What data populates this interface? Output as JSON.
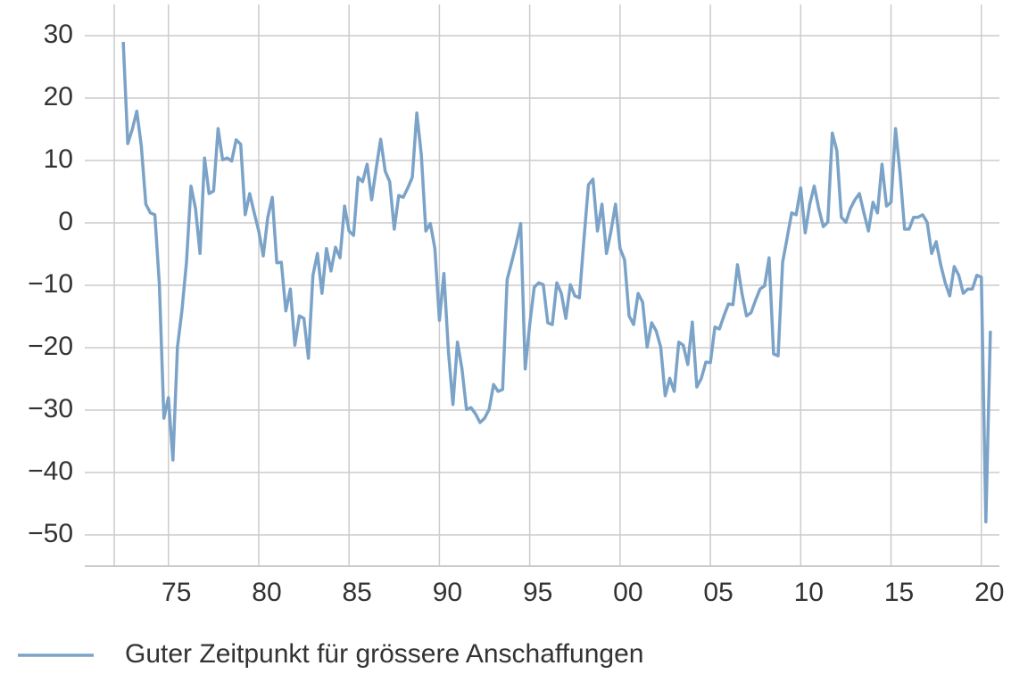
{
  "chart_data": {
    "type": "line",
    "legend": "bottom-left",
    "grid": true,
    "xlim": [
      1972,
      2021
    ],
    "xticks": [
      {
        "value": 1975,
        "label": "75"
      },
      {
        "value": 1980,
        "label": "80"
      },
      {
        "value": 1985,
        "label": "85"
      },
      {
        "value": 1990,
        "label": "90"
      },
      {
        "value": 1995,
        "label": "95"
      },
      {
        "value": 2000,
        "label": "00"
      },
      {
        "value": 2005,
        "label": "05"
      },
      {
        "value": 2010,
        "label": "10"
      },
      {
        "value": 2015,
        "label": "15"
      },
      {
        "value": 2020,
        "label": "20"
      }
    ],
    "ylim": [
      -55,
      35
    ],
    "yticks": [
      30,
      20,
      10,
      0,
      {
        "value": -10,
        "label": "−10"
      },
      {
        "value": -20,
        "label": "−20"
      },
      {
        "value": -30,
        "label": "−30"
      },
      {
        "value": -40,
        "label": "−40"
      },
      {
        "value": -50,
        "label": "−50"
      }
    ],
    "x": [
      1972.5,
      1972.75,
      1973,
      1973.25,
      1973.5,
      1973.75,
      1974,
      1974.25,
      1974.5,
      1974.75,
      1975,
      1975.25,
      1975.5,
      1975.75,
      1976,
      1976.25,
      1976.5,
      1976.75,
      1977,
      1977.25,
      1977.5,
      1977.75,
      1978,
      1978.25,
      1978.5,
      1978.75,
      1979,
      1979.25,
      1979.5,
      1979.75,
      1980,
      1980.25,
      1980.5,
      1980.75,
      1981,
      1981.25,
      1981.5,
      1981.75,
      1982,
      1982.25,
      1982.5,
      1982.75,
      1983,
      1983.25,
      1983.5,
      1983.75,
      1984,
      1984.25,
      1984.5,
      1984.75,
      1985,
      1985.25,
      1985.5,
      1985.75,
      1986,
      1986.25,
      1986.5,
      1986.75,
      1987,
      1987.25,
      1987.5,
      1987.75,
      1988,
      1988.25,
      1988.5,
      1988.75,
      1989,
      1989.25,
      1989.5,
      1989.75,
      1990,
      1990.25,
      1990.5,
      1990.75,
      1991,
      1991.25,
      1991.5,
      1991.75,
      1992,
      1992.25,
      1992.5,
      1992.75,
      1993,
      1993.25,
      1993.5,
      1993.75,
      1994,
      1994.25,
      1994.5,
      1994.75,
      1995,
      1995.25,
      1995.5,
      1995.75,
      1996,
      1996.25,
      1996.5,
      1996.75,
      1997,
      1997.25,
      1997.5,
      1997.75,
      1998,
      1998.25,
      1998.5,
      1998.75,
      1999,
      1999.25,
      1999.5,
      1999.75,
      2000,
      2000.25,
      2000.5,
      2000.75,
      2001,
      2001.25,
      2001.5,
      2001.75,
      2002,
      2002.25,
      2002.5,
      2002.75,
      2003,
      2003.25,
      2003.5,
      2003.75,
      2004,
      2004.25,
      2004.5,
      2004.75,
      2005,
      2005.25,
      2005.5,
      2005.75,
      2006,
      2006.25,
      2006.5,
      2006.75,
      2007,
      2007.25,
      2007.5,
      2007.75,
      2008,
      2008.25,
      2008.5,
      2008.75,
      2009,
      2009.25,
      2009.5,
      2009.75,
      2010,
      2010.25,
      2010.5,
      2010.75,
      2011,
      2011.25,
      2011.5,
      2011.75,
      2012,
      2012.25,
      2012.5,
      2012.75,
      2013,
      2013.25,
      2013.5,
      2013.75,
      2014,
      2014.25,
      2014.5,
      2014.75,
      2015,
      2015.25,
      2015.5,
      2015.75,
      2016,
      2016.25,
      2016.5,
      2016.75,
      2017,
      2017.25,
      2017.5,
      2017.75,
      2018,
      2018.25,
      2018.5,
      2018.75,
      2019,
      2019.25,
      2019.5,
      2019.75,
      2020,
      2020.25,
      2020.5
    ],
    "series": [
      {
        "name": "Guter Zeitpunkt für grössere Anschaffungen",
        "color": "#7ba3c8",
        "values": [
          29,
          12.7,
          15,
          17.9,
          12.3,
          3,
          1.6,
          1.3,
          -9.9,
          -31.3,
          -28,
          -38,
          -19.9,
          -14,
          -6.3,
          5.9,
          2.3,
          -4.9,
          10.4,
          4.7,
          5.1,
          15.1,
          10.1,
          10.4,
          9.9,
          13.3,
          12.6,
          1.3,
          4.7,
          1.6,
          -1.3,
          -5.3,
          0.9,
          4.1,
          -6.4,
          -6.3,
          -14.1,
          -10.6,
          -19.6,
          -14.9,
          -15.3,
          -21.7,
          -8.4,
          -4.9,
          -11.3,
          -4.1,
          -7.7,
          -3.9,
          -5.6,
          2.7,
          -1.3,
          -2,
          7.3,
          6.6,
          9.4,
          3.7,
          8.7,
          13.4,
          8.3,
          6.6,
          -1,
          4.4,
          4.1,
          5.6,
          7.3,
          17.6,
          10.9,
          -1.3,
          -0.1,
          -4.1,
          -15.6,
          -8.1,
          -20.6,
          -29.1,
          -19.1,
          -23.4,
          -29.9,
          -29.6,
          -30.6,
          -32,
          -31.3,
          -29.9,
          -25.9,
          -27,
          -26.7,
          -9.1,
          -6.3,
          -3.4,
          -0.1,
          -23.4,
          -16.3,
          -10.3,
          -9.6,
          -9.9,
          -16,
          -16.3,
          -9.6,
          -11.3,
          -15.3,
          -9.9,
          -11.7,
          -12,
          -2.7,
          6.1,
          7,
          -1.3,
          3,
          -4.9,
          -1.3,
          3,
          -4.1,
          -5.9,
          -14.9,
          -16.3,
          -11.3,
          -12.7,
          -19.9,
          -16,
          -17.3,
          -19.9,
          -27.7,
          -24.9,
          -27,
          -19.1,
          -19.6,
          -22.7,
          -15.9,
          -26.3,
          -24.9,
          -22.3,
          -22.4,
          -16.7,
          -17,
          -14.9,
          -13,
          -13.1,
          -6.7,
          -11.3,
          -14.9,
          -14.4,
          -12.4,
          -10.6,
          -10.1,
          -5.6,
          -21,
          -21.3,
          -6.3,
          -2.4,
          1.6,
          1.3,
          5.6,
          -1.6,
          3,
          5.9,
          2.3,
          -0.6,
          0.1,
          14.4,
          11.6,
          0.9,
          0.1,
          2.3,
          3.7,
          4.7,
          1.6,
          -1.3,
          3.3,
          1.6,
          9.4,
          2.7,
          3.3,
          15.1,
          8,
          -1,
          -1,
          0.9,
          0.9,
          1.3,
          0.1,
          -4.9,
          -3,
          -6.7,
          -9.6,
          -11.7,
          -7,
          -8.4,
          -11.3,
          -10.6,
          -10.6,
          -8.4,
          -8.7,
          -47.9,
          -17.3
        ]
      }
    ]
  }
}
